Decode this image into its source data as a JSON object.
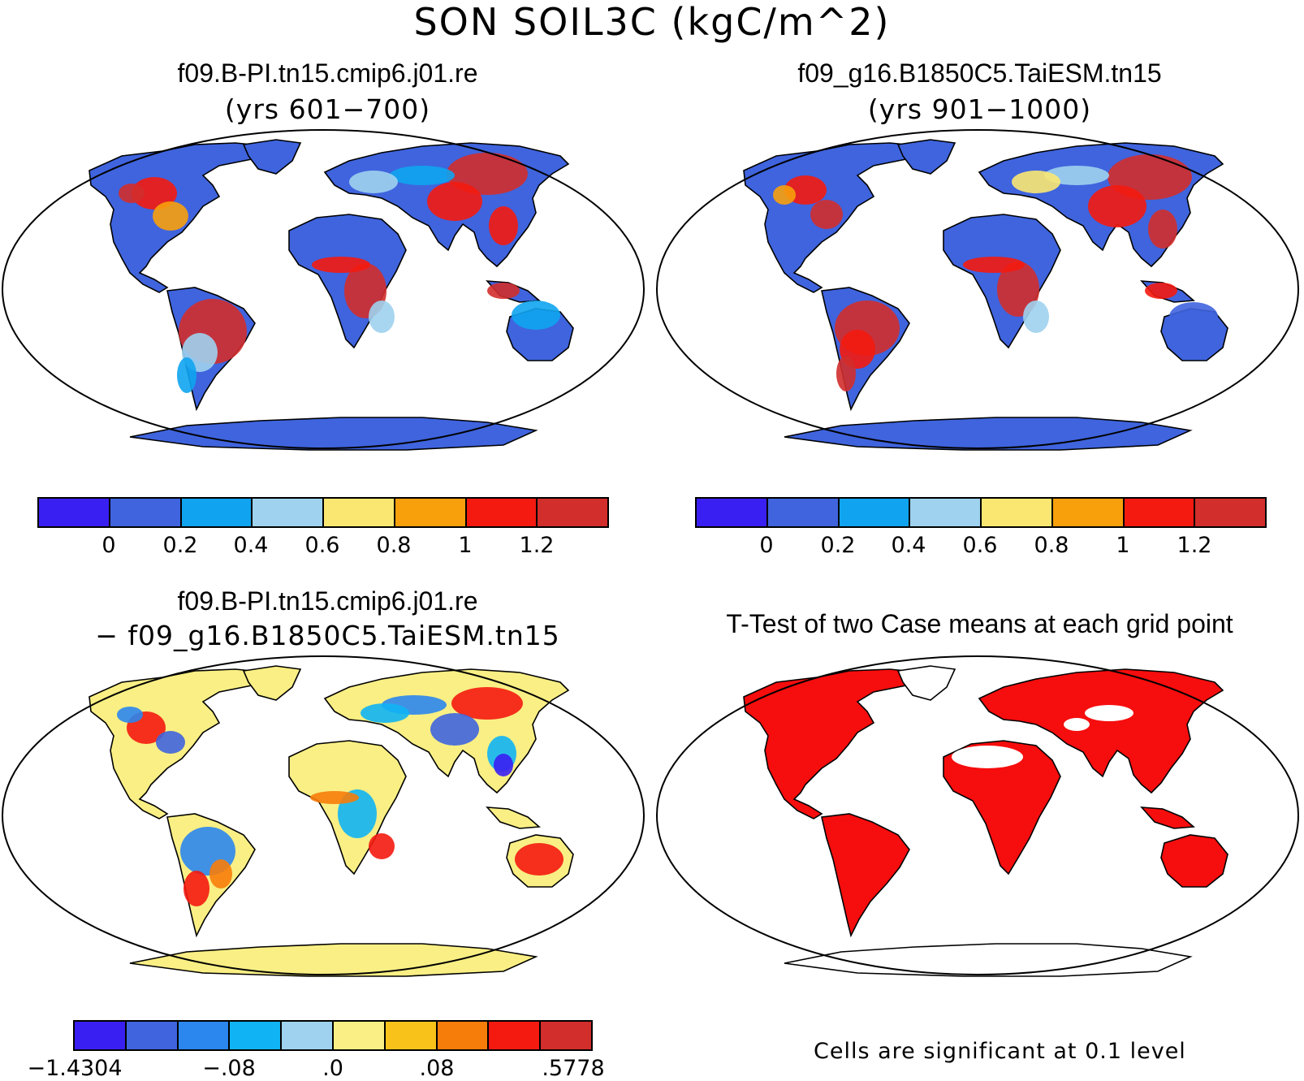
{
  "title": "SON SOIL3C (kgC/m^2)",
  "panels": {
    "case1": {
      "title": "f09.B-PI.tn15.cmip6.j01.re",
      "subtitle": "(yrs 601−700)"
    },
    "case2": {
      "title": "f09_g16.B1850C5.TaiESM.tn15",
      "subtitle": "(yrs 901−1000)"
    },
    "diff": {
      "title": "f09.B-PI.tn15.cmip6.j01.re",
      "subtitle": "− f09_g16.B1850C5.TaiESM.tn15"
    },
    "ttest": {
      "title": "T-Test of two Case means at each grid point",
      "note": "Cells are significant at 0.1 level"
    }
  },
  "colorbars": {
    "absolute": {
      "colors": [
        "#3a1ff2",
        "#3f64de",
        "#10a4f0",
        "#9ed2ee",
        "#f9e772",
        "#f8a00c",
        "#f41a10",
        "#d22e2c"
      ],
      "labels": [
        "0",
        "0.2",
        "0.4",
        "0.6",
        "0.8",
        "1",
        "1.2"
      ]
    },
    "difference": {
      "colors": [
        "#3a1ff2",
        "#3f64de",
        "#2b86ee",
        "#10b4f4",
        "#9ed2ee",
        "#f9ef84",
        "#f8c21a",
        "#f77d0a",
        "#f41a10",
        "#d22e2c"
      ],
      "labels": [
        "−1.4304",
        "−.08",
        ".0",
        ".08",
        ".5778"
      ]
    }
  },
  "colors": {
    "ocean": "#ffffff",
    "outline": "#000000",
    "significant": "#f60d0d",
    "insignificant": "#ffffff"
  }
}
